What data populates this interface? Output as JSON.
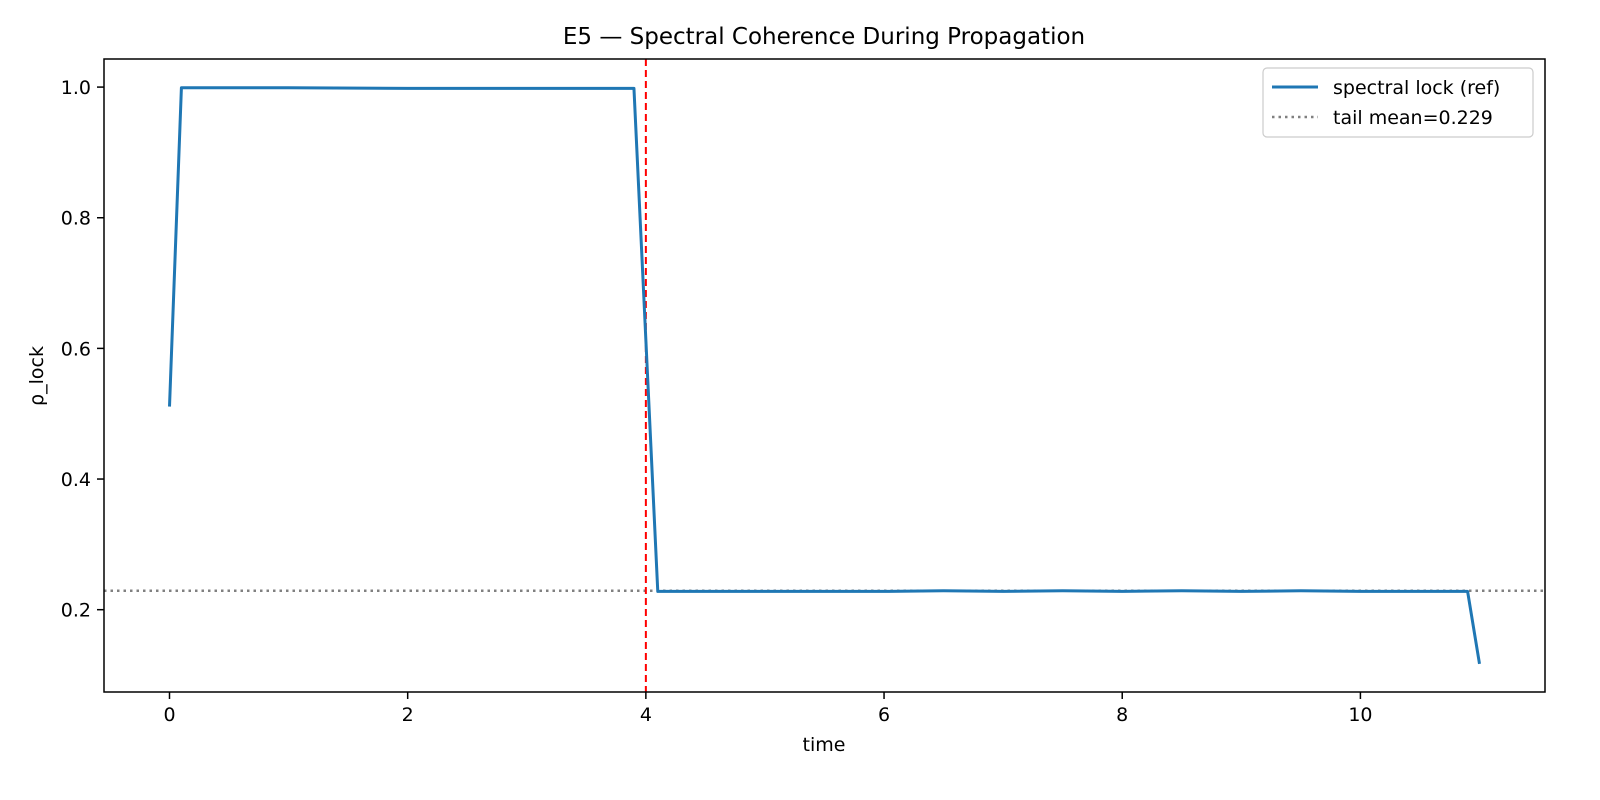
{
  "chart_data": {
    "type": "line",
    "title": "E5 — Spectral Coherence During Propagation",
    "xlabel": "time",
    "ylabel": "ρ_lock",
    "xlim": [
      -0.55,
      11.55
    ],
    "ylim": [
      0.074,
      1.043
    ],
    "xticks": [
      0,
      2,
      4,
      6,
      8,
      10
    ],
    "yticks": [
      0.2,
      0.4,
      0.6,
      0.8,
      1.0
    ],
    "xtick_labels": [
      "0",
      "2",
      "4",
      "6",
      "8",
      "10"
    ],
    "ytick_labels": [
      "0.2",
      "0.4",
      "0.6",
      "0.8",
      "1.0"
    ],
    "grid": false,
    "legend_position": "top-right",
    "series": [
      {
        "name": "spectral lock (ref)",
        "color": "#1f77b4",
        "style": "solid",
        "x": [
          0,
          0.1,
          1,
          2,
          3,
          3.9,
          4.1,
          5,
          6,
          6.5,
          7,
          7.5,
          8,
          8.5,
          9,
          9.5,
          10,
          10.5,
          10.9,
          11.0
        ],
        "y": [
          0.511,
          0.999,
          0.999,
          0.998,
          0.998,
          0.998,
          0.228,
          0.228,
          0.228,
          0.229,
          0.228,
          0.229,
          0.228,
          0.229,
          0.228,
          0.229,
          0.228,
          0.228,
          0.228,
          0.117
        ]
      }
    ],
    "reference_lines": [
      {
        "name": "tail mean=0.229",
        "orientation": "horizontal",
        "value": 0.229,
        "color": "#808080",
        "style": "dotted",
        "in_legend": true
      },
      {
        "orientation": "vertical",
        "value": 4.0,
        "color": "#ff0000",
        "style": "dashed",
        "in_legend": false
      }
    ]
  }
}
